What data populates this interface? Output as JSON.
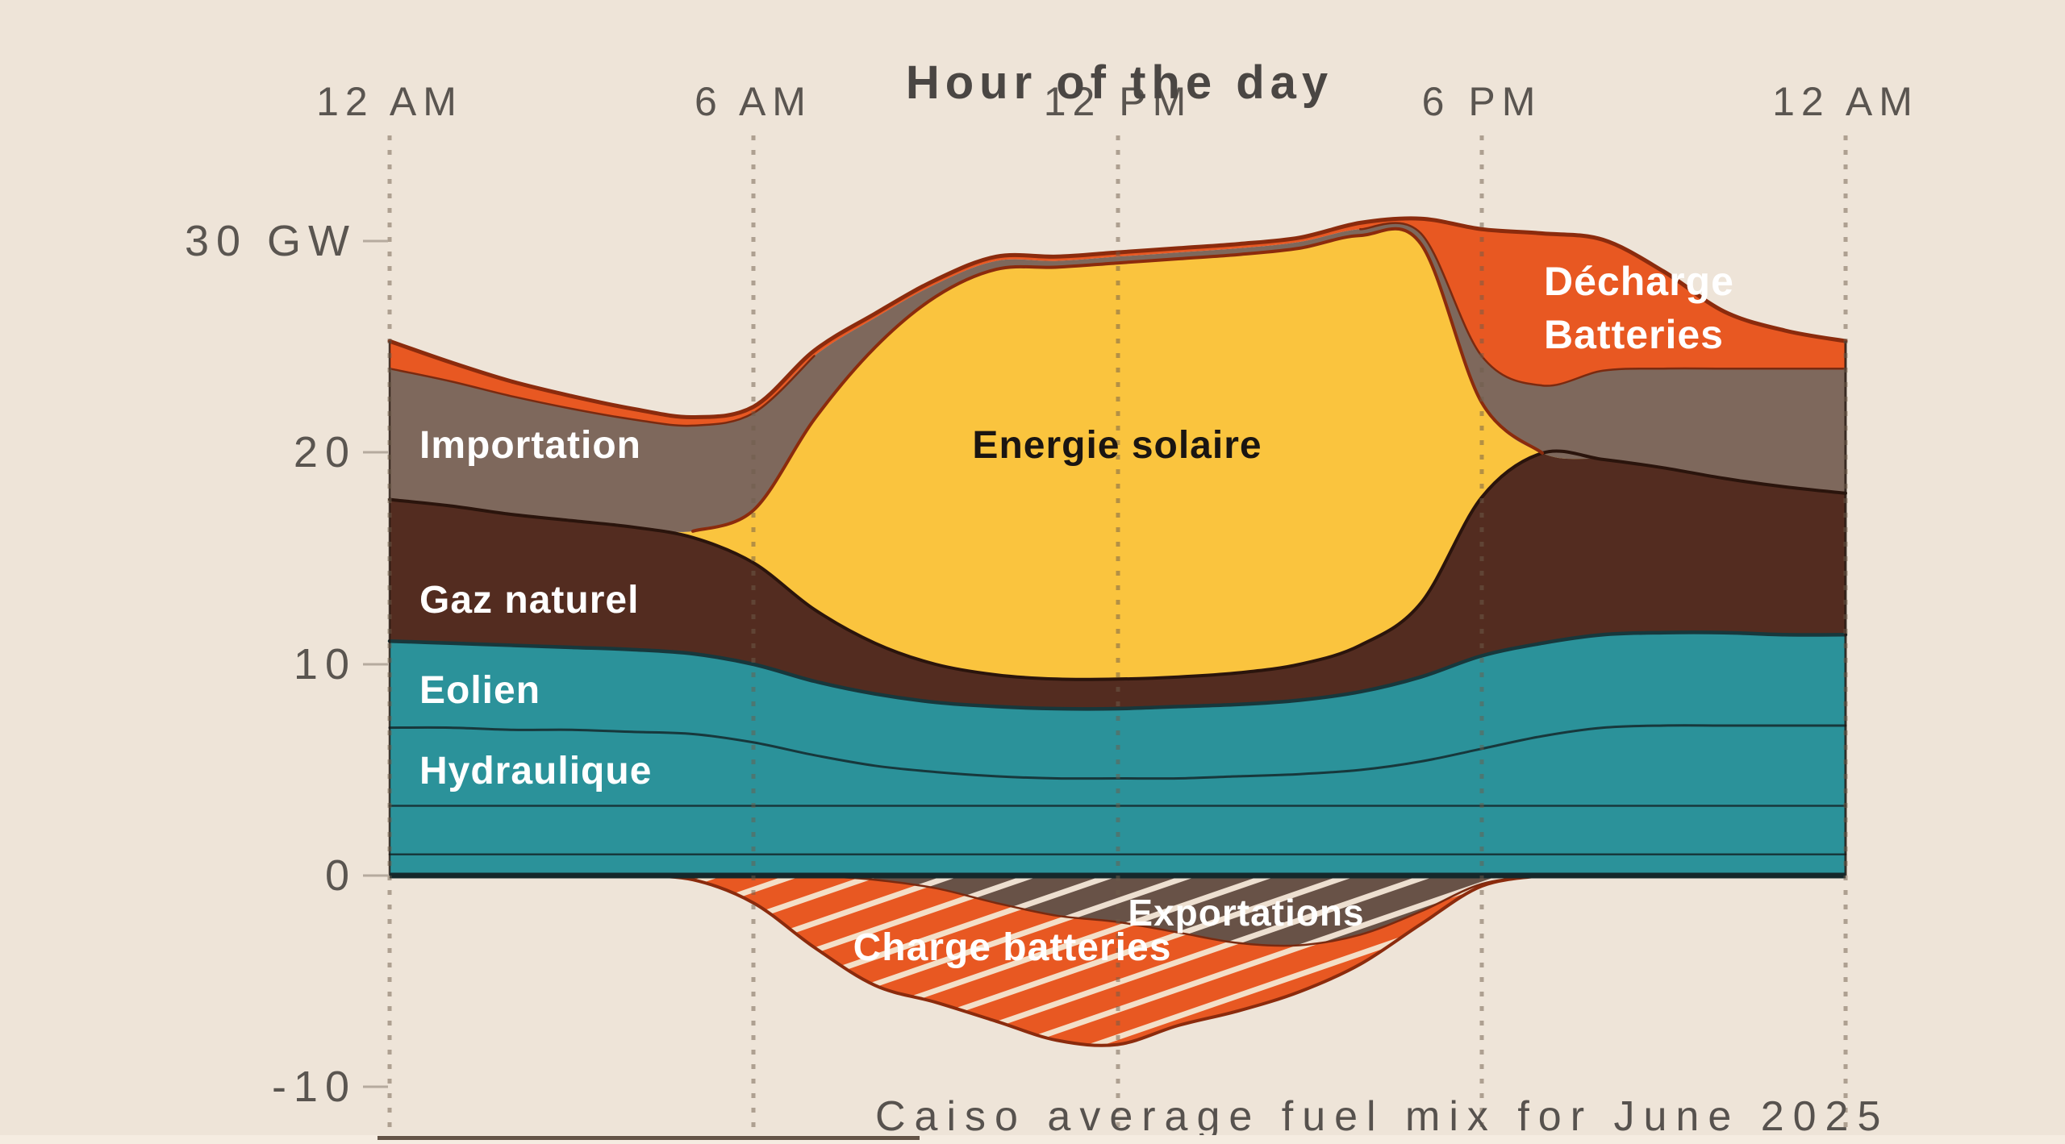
{
  "header": {
    "title": "Hour of the day"
  },
  "footer": {
    "caption": "Caiso average fuel mix for June 2025"
  },
  "axes": {
    "x": {
      "tick_labels": [
        "12 AM",
        "6 AM",
        "12 PM",
        "6 PM",
        "12 AM"
      ],
      "tick_hours": [
        0,
        6,
        12,
        18,
        24
      ]
    },
    "y": {
      "tick_labels": [
        "30 GW",
        "20",
        "10",
        "0",
        "-10"
      ],
      "tick_values": [
        30,
        20,
        10,
        0,
        -10
      ],
      "unit": "GW"
    }
  },
  "chart_data": {
    "type": "area",
    "stacked": true,
    "title": "Hour of the day",
    "caption": "Caiso average fuel mix for June 2025",
    "grid": "vertical-dotted",
    "ylim": [
      -10.5,
      31.8
    ],
    "x_hours": [
      0,
      1,
      2,
      3,
      4,
      5,
      6,
      7,
      8,
      9,
      10,
      11,
      12,
      13,
      14,
      15,
      16,
      17,
      18,
      19,
      20,
      21,
      22,
      23,
      24
    ],
    "x_tick_labels": [
      "12 AM",
      "6 AM",
      "12 PM",
      "6 PM",
      "12 AM"
    ],
    "y_tick_labels": [
      "30 GW",
      "20",
      "10",
      "0",
      "-10"
    ],
    "decharge_label_lines": [
      "Décharge",
      "Batteries"
    ],
    "series": [
      {
        "id": "teal-band-lower",
        "label": "",
        "color": "#2B929A",
        "values": [
          1.0,
          1.0,
          1.0,
          1.0,
          1.0,
          1.0,
          1.0,
          1.0,
          1.0,
          1.0,
          1.0,
          1.0,
          1.0,
          1.0,
          1.0,
          1.0,
          1.0,
          1.0,
          1.0,
          1.0,
          1.0,
          1.0,
          1.0,
          1.0,
          1.0
        ]
      },
      {
        "id": "teal-band-mid",
        "label": "",
        "color": "#2B929A",
        "values": [
          2.3,
          2.3,
          2.3,
          2.3,
          2.3,
          2.3,
          2.3,
          2.3,
          2.3,
          2.3,
          2.3,
          2.3,
          2.3,
          2.3,
          2.3,
          2.3,
          2.3,
          2.3,
          2.3,
          2.3,
          2.3,
          2.3,
          2.3,
          2.3,
          2.3
        ]
      },
      {
        "id": "hydraulique",
        "label": "Hydraulique",
        "color": "#2B929A",
        "values": [
          3.7,
          3.7,
          3.6,
          3.6,
          3.5,
          3.4,
          3.0,
          2.4,
          1.9,
          1.6,
          1.4,
          1.3,
          1.3,
          1.3,
          1.4,
          1.5,
          1.7,
          2.1,
          2.7,
          3.3,
          3.7,
          3.8,
          3.8,
          3.8,
          3.8
        ]
      },
      {
        "id": "eolien",
        "label": "Eolien",
        "color": "#2B929A",
        "values": [
          4.1,
          4.0,
          4.0,
          3.9,
          3.9,
          3.8,
          3.7,
          3.5,
          3.4,
          3.3,
          3.3,
          3.3,
          3.3,
          3.4,
          3.4,
          3.5,
          3.7,
          4.0,
          4.4,
          4.4,
          4.4,
          4.4,
          4.4,
          4.3,
          4.3
        ]
      },
      {
        "id": "gaz-naturel",
        "label": "Gaz naturel",
        "color": "#532C20",
        "values": [
          6.7,
          6.5,
          6.2,
          6.0,
          5.8,
          5.5,
          4.8,
          3.4,
          2.4,
          1.8,
          1.5,
          1.4,
          1.4,
          1.4,
          1.5,
          1.7,
          2.2,
          3.5,
          7.5,
          9.0,
          8.3,
          7.8,
          7.3,
          7.0,
          6.7
        ]
      },
      {
        "id": "energie-solaire",
        "label": "Energie solaire",
        "color": "#FAC43E",
        "values": [
          0,
          0,
          0,
          0,
          0,
          0.3,
          2.5,
          9.0,
          14.0,
          17.4,
          19.2,
          19.5,
          19.7,
          19.8,
          19.8,
          19.7,
          19.4,
          17.0,
          4.5,
          0,
          0,
          0,
          0,
          0,
          0
        ]
      },
      {
        "id": "importation",
        "label": "Importation",
        "color": "#7E685C",
        "values": [
          6.2,
          5.9,
          5.6,
          5.3,
          5.1,
          5.0,
          4.6,
          3.0,
          1.4,
          0.6,
          0.4,
          0.3,
          0.3,
          0.3,
          0.3,
          0.3,
          0.3,
          0.5,
          2.2,
          3.2,
          4.2,
          4.7,
          5.2,
          5.6,
          5.9
        ]
      },
      {
        "id": "decharge-batteries",
        "label": "Décharge Batteries",
        "color": "#E85822",
        "values": [
          1.3,
          0.9,
          0.7,
          0.6,
          0.5,
          0.4,
          0.3,
          0.25,
          0.2,
          0.2,
          0.2,
          0.2,
          0.2,
          0.2,
          0.2,
          0.2,
          0.3,
          0.7,
          6.0,
          7.2,
          6.2,
          4.6,
          2.7,
          1.8,
          1.3
        ]
      }
    ],
    "negative_series": [
      {
        "id": "exportations",
        "label": "Exportations",
        "color": "#685247",
        "hatch": true,
        "values": [
          0,
          0,
          0,
          0,
          0,
          0,
          0,
          0,
          0.2,
          0.6,
          1.3,
          1.9,
          2.2,
          2.7,
          3.2,
          3.3,
          2.8,
          1.7,
          0.4,
          0,
          0,
          0,
          0,
          0,
          0
        ]
      },
      {
        "id": "charge-batteries",
        "label": "Charge batteries",
        "color": "#E85822",
        "hatch": true,
        "values": [
          0,
          0,
          0,
          0,
          0,
          0.2,
          1.3,
          3.4,
          5.0,
          5.4,
          5.6,
          5.9,
          5.8,
          4.4,
          3.2,
          2.2,
          1.4,
          0.6,
          0.1,
          0,
          0,
          0,
          0,
          0,
          0
        ]
      }
    ],
    "colors": {
      "background": "#EEE4D8",
      "teal": "#2B929A",
      "teal_line": "#17383C",
      "gaz": "#532C20",
      "solaire": "#FAC43E",
      "importation": "#7E685C",
      "batterie_orange": "#E85822",
      "exportations_brown": "#685247",
      "hatch_line_warm": "#F3DFC8",
      "hatch_line_cool": "#EDDFD0",
      "outline_red": "#8B2B0D",
      "outline_dark": "#2A140C",
      "zero_line": "#15282B",
      "axis_text": "#5A5550"
    }
  }
}
